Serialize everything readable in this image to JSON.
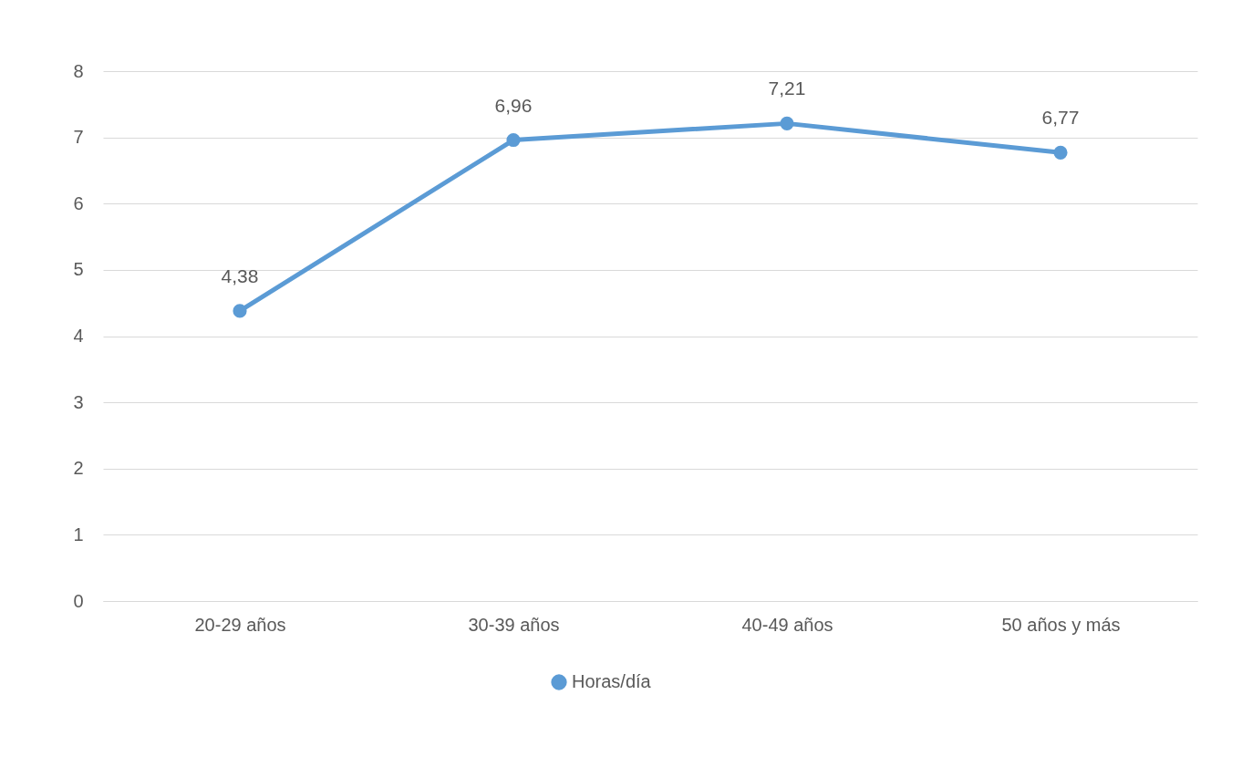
{
  "chart_data": {
    "type": "line",
    "categories": [
      "20-29 años",
      "30-39 años",
      "40-49 años",
      "50 años y más"
    ],
    "series": [
      {
        "name": "Horas/día",
        "color": "#5b9bd5",
        "values": [
          4.38,
          6.96,
          7.21,
          6.77
        ],
        "value_labels": [
          "4,38",
          "6,96",
          "7,21",
          "6,77"
        ]
      }
    ],
    "ylim": [
      0,
      8
    ],
    "yticks": [
      0,
      1,
      2,
      3,
      4,
      5,
      6,
      7,
      8
    ],
    "grid": "y",
    "legend": "bottom",
    "marker": "circle",
    "line_style": "solid"
  }
}
